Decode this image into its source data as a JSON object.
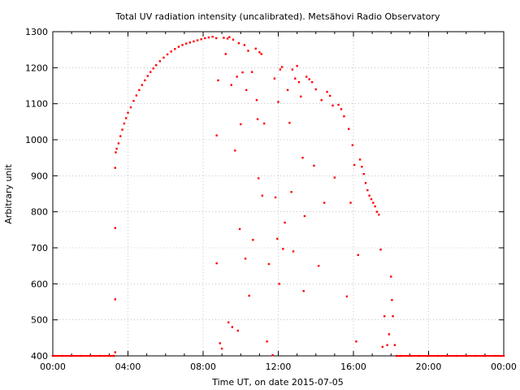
{
  "chart_data": {
    "type": "scatter",
    "title": "Total UV radiation intensity (uncalibrated). Metsähovi Radio Observatory",
    "xlabel": "Time UT, on date 2015-07-05",
    "ylabel": "Arbitrary unit",
    "xlim": [
      "00:00",
      "24:00"
    ],
    "ylim": [
      400,
      1300
    ],
    "x_ticks": [
      "00:00",
      "04:00",
      "08:00",
      "12:00",
      "16:00",
      "20:00",
      "00:00"
    ],
    "y_ticks": [
      400,
      500,
      600,
      700,
      800,
      900,
      1000,
      1100,
      1200,
      1300
    ],
    "grid": true,
    "marker_color": "#ff0000",
    "series": [
      {
        "x_unit": "hours UT",
        "points": [
          [
            0.0,
            400
          ],
          [
            0.5,
            400
          ],
          [
            1.0,
            400
          ],
          [
            1.5,
            400
          ],
          [
            2.0,
            400
          ],
          [
            2.5,
            400
          ],
          [
            3.0,
            400
          ],
          [
            3.25,
            400
          ],
          [
            3.32,
            410
          ],
          [
            3.32,
            557
          ],
          [
            3.32,
            755
          ],
          [
            3.32,
            922
          ],
          [
            3.35,
            965
          ],
          [
            3.4,
            975
          ],
          [
            3.5,
            990
          ],
          [
            3.6,
            1010
          ],
          [
            3.7,
            1028
          ],
          [
            3.8,
            1045
          ],
          [
            3.9,
            1060
          ],
          [
            4.0,
            1075
          ],
          [
            4.15,
            1090
          ],
          [
            4.3,
            1108
          ],
          [
            4.45,
            1123
          ],
          [
            4.6,
            1138
          ],
          [
            4.75,
            1152
          ],
          [
            4.9,
            1165
          ],
          [
            5.05,
            1177
          ],
          [
            5.2,
            1188
          ],
          [
            5.35,
            1198
          ],
          [
            5.5,
            1207
          ],
          [
            5.7,
            1218
          ],
          [
            5.9,
            1228
          ],
          [
            6.1,
            1237
          ],
          [
            6.3,
            1245
          ],
          [
            6.5,
            1252
          ],
          [
            6.7,
            1258
          ],
          [
            6.9,
            1263
          ],
          [
            7.1,
            1267
          ],
          [
            7.3,
            1270
          ],
          [
            7.5,
            1273
          ],
          [
            7.7,
            1276
          ],
          [
            7.9,
            1279
          ],
          [
            8.1,
            1282
          ],
          [
            8.3,
            1284
          ],
          [
            8.5,
            1286
          ],
          [
            8.7,
            1282
          ],
          [
            8.72,
            1012
          ],
          [
            8.72,
            657
          ],
          [
            8.8,
            1165
          ],
          [
            8.9,
            435
          ],
          [
            9.0,
            420
          ],
          [
            9.1,
            1283
          ],
          [
            9.2,
            1238
          ],
          [
            9.3,
            1281
          ],
          [
            9.35,
            493
          ],
          [
            9.4,
            1285
          ],
          [
            9.5,
            1152
          ],
          [
            9.55,
            480
          ],
          [
            9.6,
            1278
          ],
          [
            9.7,
            970
          ],
          [
            9.8,
            1175
          ],
          [
            9.85,
            470
          ],
          [
            9.9,
            1268
          ],
          [
            9.95,
            752
          ],
          [
            10.0,
            1043
          ],
          [
            10.1,
            1187
          ],
          [
            10.2,
            1263
          ],
          [
            10.25,
            670
          ],
          [
            10.3,
            1138
          ],
          [
            10.4,
            1247
          ],
          [
            10.45,
            567
          ],
          [
            10.6,
            1188
          ],
          [
            10.65,
            722
          ],
          [
            10.8,
            1253
          ],
          [
            10.85,
            1110
          ],
          [
            10.9,
            1057
          ],
          [
            10.95,
            893
          ],
          [
            11.0,
            1243
          ],
          [
            11.1,
            1238
          ],
          [
            11.15,
            845
          ],
          [
            11.25,
            1045
          ],
          [
            11.4,
            440
          ],
          [
            11.5,
            655
          ],
          [
            11.7,
            402
          ],
          [
            11.8,
            1170
          ],
          [
            11.85,
            840
          ],
          [
            11.95,
            725
          ],
          [
            12.0,
            1105
          ],
          [
            12.05,
            600
          ],
          [
            12.1,
            1195
          ],
          [
            12.2,
            1202
          ],
          [
            12.25,
            697
          ],
          [
            12.35,
            770
          ],
          [
            12.5,
            1138
          ],
          [
            12.6,
            1047
          ],
          [
            12.7,
            855
          ],
          [
            12.75,
            1195
          ],
          [
            12.8,
            690
          ],
          [
            12.9,
            1170
          ],
          [
            13.0,
            1205
          ],
          [
            13.1,
            1160
          ],
          [
            13.2,
            1120
          ],
          [
            13.3,
            950
          ],
          [
            13.35,
            580
          ],
          [
            13.4,
            788
          ],
          [
            13.5,
            1175
          ],
          [
            13.65,
            1168
          ],
          [
            13.8,
            1160
          ],
          [
            13.9,
            928
          ],
          [
            14.0,
            1140
          ],
          [
            14.15,
            650
          ],
          [
            14.3,
            1110
          ],
          [
            14.45,
            825
          ],
          [
            14.6,
            1133
          ],
          [
            14.75,
            1122
          ],
          [
            14.9,
            1095
          ],
          [
            15.0,
            895
          ],
          [
            15.2,
            1097
          ],
          [
            15.35,
            1085
          ],
          [
            15.5,
            1065
          ],
          [
            15.65,
            565
          ],
          [
            15.75,
            1030
          ],
          [
            15.85,
            825
          ],
          [
            15.95,
            985
          ],
          [
            16.05,
            930
          ],
          [
            16.15,
            440
          ],
          [
            16.25,
            680
          ],
          [
            16.35,
            945
          ],
          [
            16.45,
            925
          ],
          [
            16.55,
            905
          ],
          [
            16.65,
            880
          ],
          [
            16.75,
            860
          ],
          [
            16.85,
            845
          ],
          [
            16.95,
            835
          ],
          [
            17.05,
            825
          ],
          [
            17.15,
            815
          ],
          [
            17.25,
            800
          ],
          [
            17.35,
            792
          ],
          [
            17.45,
            695
          ],
          [
            17.55,
            425
          ],
          [
            17.65,
            510
          ],
          [
            17.8,
            430
          ],
          [
            17.9,
            460
          ],
          [
            18.0,
            620
          ],
          [
            18.05,
            555
          ],
          [
            18.1,
            510
          ],
          [
            18.2,
            430
          ],
          [
            18.3,
            400
          ],
          [
            18.5,
            400
          ],
          [
            19.0,
            400
          ],
          [
            19.5,
            400
          ],
          [
            20.0,
            400
          ],
          [
            20.5,
            400
          ],
          [
            21.0,
            400
          ],
          [
            21.5,
            400
          ],
          [
            22.0,
            400
          ],
          [
            22.5,
            400
          ],
          [
            23.0,
            400
          ],
          [
            23.5,
            400
          ],
          [
            24.0,
            400
          ]
        ]
      }
    ]
  }
}
